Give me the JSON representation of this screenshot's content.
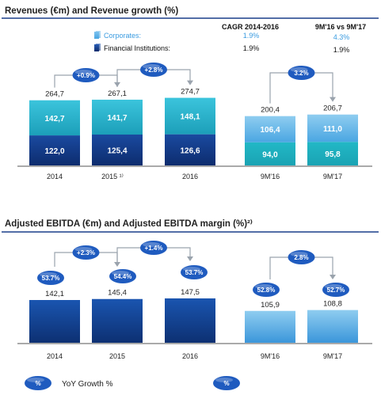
{
  "colors": {
    "corporates_top": "#3bc4dc",
    "corporates_bottom": "#1c9fb9",
    "fi_top": "#1a4aa0",
    "fi_bottom": "#0d2c6e",
    "nine_top_light": "#8fcdf0",
    "nine_top_mid": "#4aa6e2",
    "nine_bottom_teal": "#1aa3b3",
    "ebitda_dark_top": "#1a55b0",
    "ebitda_dark_bottom": "#0d3072",
    "ebitda_light_top": "#8fcdf0",
    "ebitda_light_bottom": "#3b96da",
    "bubble": "#1f5bbf",
    "title_line": "#1a3f8a",
    "legend_corporates": "#4aa6e2",
    "legend_fi": "#0d2c6e"
  },
  "chart_data": [
    {
      "type": "bar",
      "stacked": true,
      "title": "Revenues (€m) and Revenue growth (%)",
      "categories": [
        "2014",
        "2015 ¹⁾",
        "2016",
        "9M'16",
        "9M'17"
      ],
      "series": [
        {
          "name": "Financial Institutions:",
          "values": [
            122.0,
            125.4,
            126.6,
            94.0,
            95.8
          ],
          "labels": [
            "122,0",
            "125,4",
            "126,6",
            "94,0",
            "95,8"
          ]
        },
        {
          "name": "Corporates:",
          "values": [
            142.7,
            141.7,
            148.1,
            106.4,
            111.0
          ],
          "labels": [
            "142,7",
            "141,7",
            "148,1",
            "106,4",
            "111,0"
          ]
        }
      ],
      "totals": [
        264.7,
        267.1,
        274.7,
        200.4,
        206.7
      ],
      "total_labels": [
        "264,7",
        "267,1",
        "274,7",
        "200,4",
        "206,7"
      ],
      "growth": [
        {
          "from": "2014",
          "to": "2015 ¹⁾",
          "label": "+0.9%"
        },
        {
          "from": "2015 ¹⁾",
          "to": "2016",
          "label": "+2.8%"
        },
        {
          "from": "9M'16",
          "to": "9M'17",
          "label": "3.2%"
        }
      ],
      "cagr_table": {
        "col1_header": "CAGR 2014-2016",
        "col2_header": "9M'16 vs 9M'17",
        "rows": [
          {
            "name": "Corporates:",
            "cagr": "1.9%",
            "nine": "4.3%"
          },
          {
            "name": "Financial Institutions:",
            "cagr": "1.9%",
            "nine": "1.9%"
          }
        ]
      }
    },
    {
      "type": "bar",
      "title": "Adjusted EBITDA (€m) and Adjusted EBITDA margin (%)²⁾",
      "categories": [
        "2014",
        "2015",
        "2016",
        "9M'16",
        "9M'17"
      ],
      "values": [
        142.1,
        145.4,
        147.5,
        105.9,
        108.8
      ],
      "value_labels": [
        "142,1",
        "145,4",
        "147,5",
        "105,9",
        "108,8"
      ],
      "margins": [
        "53.7%",
        "54.4%",
        "53.7%",
        "52.8%",
        "52.7%"
      ],
      "growth": [
        {
          "from": "2014",
          "to": "2015",
          "label": "+2.3%"
        },
        {
          "from": "2015",
          "to": "2016",
          "label": "+1.4%"
        },
        {
          "from": "9M'16",
          "to": "9M'17",
          "label": "2.8%"
        }
      ],
      "legend": [
        {
          "symbol": "%",
          "label": "YoY Growth %"
        },
        {
          "symbol": "%",
          "label": ""
        }
      ]
    }
  ]
}
